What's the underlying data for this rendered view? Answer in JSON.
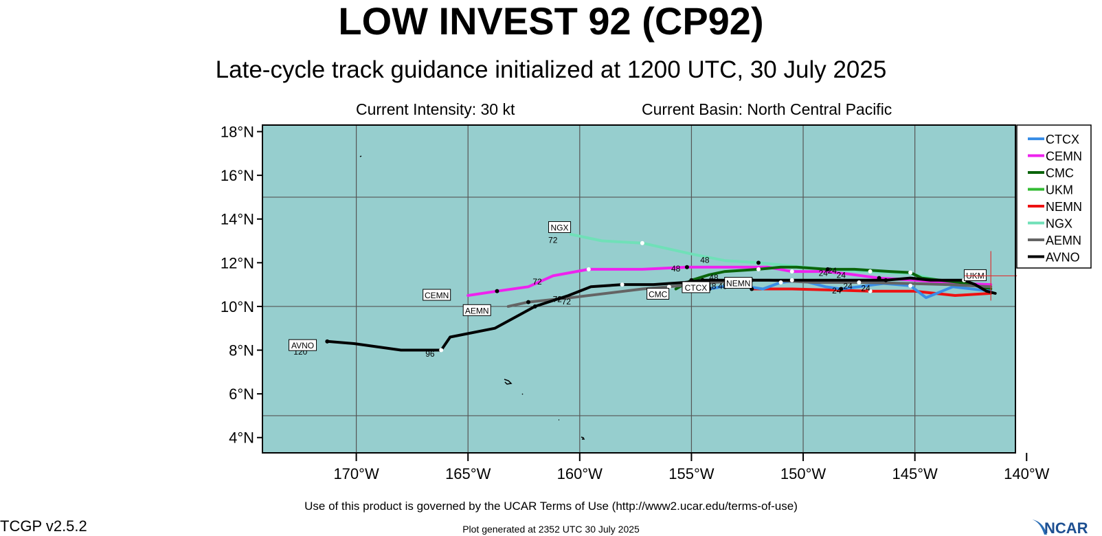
{
  "header": {
    "title": "LOW INVEST 92 (CP92)",
    "subtitle": "Late-cycle track guidance initialized at 1200 UTC, 30 July 2025",
    "intensity": "Current Intensity: 30 kt",
    "basin": "Current Basin: North Central Pacific"
  },
  "footer": {
    "terms": "Use of this product is governed by the UCAR Terms of Use (http://www2.ucar.edu/terms-of-use)",
    "version": "TCGP v2.5.2",
    "generated": "Plot generated at 2352 UTC   30 July 2025",
    "logo_text": "NCAR"
  },
  "colors": {
    "ocean": "#96cece",
    "grid": "#555555",
    "CTCX": "#3a8ee6",
    "CEMN": "#ee22ee",
    "CMC": "#0a640a",
    "UKM": "#33bb33",
    "NEMN": "#ee1111",
    "NGX": "#70e0b8",
    "AEMN": "#646464",
    "AVNO": "#000000",
    "current_position": "#dd3333"
  },
  "chart_data": {
    "type": "map-track",
    "lat_ticks": [
      "4°N",
      "6°N",
      "8°N",
      "10°N",
      "12°N",
      "14°N",
      "16°N",
      "18°N"
    ],
    "lon_ticks": [
      "170°W",
      "165°W",
      "160°W",
      "155°W",
      "150°W",
      "145°W",
      "140°W"
    ],
    "lat_range": [
      3.3,
      18.3
    ],
    "lon_range": [
      -174.2,
      -140.5
    ],
    "current_position": {
      "lon": -141.6,
      "lat": 11.4
    },
    "legend": [
      "CTCX",
      "CEMN",
      "CMC",
      "UKM",
      "NEMN",
      "NGX",
      "AEMN",
      "AVNO"
    ],
    "series": [
      {
        "name": "NGX",
        "tag": "NGX",
        "end_hour": "72",
        "points": [
          [
            -141.6,
            11.0
          ],
          [
            -143.5,
            11.1
          ],
          [
            -145.2,
            11.5
          ],
          [
            -147,
            11.6
          ],
          [
            -149,
            11.7
          ],
          [
            -151,
            11.9
          ],
          [
            -152,
            12.0
          ],
          [
            -153.5,
            12.1
          ],
          [
            -155,
            12.4
          ],
          [
            -157.2,
            12.9
          ],
          [
            -159,
            13.0
          ],
          [
            -160.4,
            13.3
          ]
        ]
      },
      {
        "name": "CEMN",
        "tag": "CEMN",
        "end_hour": "72",
        "points": [
          [
            -141.6,
            11.0
          ],
          [
            -143,
            11.05
          ],
          [
            -145,
            11.2
          ],
          [
            -146.6,
            11.3
          ],
          [
            -148.1,
            11.5
          ],
          [
            -149,
            11.6
          ],
          [
            -150.5,
            11.6
          ],
          [
            -151.6,
            11.8
          ],
          [
            -154,
            11.8
          ],
          [
            -155.2,
            11.8
          ],
          [
            -157.2,
            11.7
          ],
          [
            -158.2,
            11.7
          ],
          [
            -159.6,
            11.7
          ],
          [
            -161.2,
            11.4
          ],
          [
            -162.3,
            10.9
          ],
          [
            -163.7,
            10.7
          ],
          [
            -165,
            10.5
          ]
        ]
      },
      {
        "name": "CMC",
        "tag": "CMC",
        "end_hour": "",
        "points": [
          [
            -141.6,
            10.8
          ],
          [
            -143,
            11.1
          ],
          [
            -144.7,
            11.3
          ],
          [
            -145.2,
            11.55
          ],
          [
            -146.1,
            11.6
          ],
          [
            -147.7,
            11.7
          ],
          [
            -148.9,
            11.7
          ],
          [
            -150.3,
            11.8
          ],
          [
            -151,
            11.8
          ],
          [
            -152,
            11.7
          ],
          [
            -153.5,
            11.6
          ],
          [
            -154.2,
            11.45
          ],
          [
            -155,
            11.2
          ],
          [
            -155.7,
            10.8
          ]
        ]
      },
      {
        "name": "NEMN",
        "tag": "NEMN",
        "end_hour": "",
        "points": [
          [
            -141.6,
            10.6
          ],
          [
            -143.2,
            10.5
          ],
          [
            -145,
            10.7
          ],
          [
            -147,
            10.7
          ],
          [
            -148.6,
            10.75
          ],
          [
            -150.5,
            10.8
          ],
          [
            -152.3,
            10.8
          ]
        ]
      },
      {
        "name": "CTCX",
        "tag": "CTCX",
        "end_hour": "",
        "points": [
          [
            -141.6,
            10.7
          ],
          [
            -143.3,
            10.9
          ],
          [
            -144.5,
            10.4
          ],
          [
            -145.2,
            10.95
          ],
          [
            -146.4,
            11.05
          ],
          [
            -147.5,
            10.9
          ],
          [
            -148.3,
            10.8
          ],
          [
            -149,
            10.9
          ],
          [
            -150.1,
            11.2
          ],
          [
            -151,
            11.1
          ],
          [
            -151.8,
            10.8
          ],
          [
            -153.1,
            11.0
          ],
          [
            -154.2,
            10.8
          ],
          [
            -154.9,
            10.8
          ]
        ]
      },
      {
        "name": "AEMN",
        "tag": "AEMN",
        "end_hour": "72",
        "points": [
          [
            -141.6,
            10.9
          ],
          [
            -143.5,
            11.0
          ],
          [
            -145.3,
            11.05
          ],
          [
            -147.5,
            11.1
          ],
          [
            -149.5,
            11.1
          ],
          [
            -151.5,
            11.2
          ],
          [
            -152.3,
            11.2
          ],
          [
            -154,
            11.1
          ],
          [
            -155,
            11.0
          ],
          [
            -156,
            10.9
          ],
          [
            -157.2,
            10.8
          ],
          [
            -160.4,
            10.4
          ],
          [
            -162.3,
            10.2
          ],
          [
            -163.2,
            10.0
          ]
        ]
      },
      {
        "name": "AVNO",
        "tag": "AVNO",
        "end_hour": "120",
        "points": [
          [
            -141.4,
            10.6
          ],
          [
            -141.8,
            10.7
          ],
          [
            -142.3,
            11.0
          ],
          [
            -142.8,
            11.2
          ],
          [
            -144.3,
            11.2
          ],
          [
            -145.2,
            11.3
          ],
          [
            -146.3,
            11.2
          ],
          [
            -147.9,
            11.2
          ],
          [
            -149,
            11.2
          ],
          [
            -150.5,
            11.2
          ],
          [
            -152,
            11.2
          ],
          [
            -153.5,
            11.2
          ],
          [
            -154.5,
            11.2
          ],
          [
            -155.3,
            11.1
          ],
          [
            -156.7,
            11.0
          ],
          [
            -158.1,
            11.0
          ],
          [
            -159.5,
            10.9
          ],
          [
            -160.5,
            10.5
          ],
          [
            -162,
            10.0
          ],
          [
            -163.8,
            9.0
          ],
          [
            -165.8,
            8.6
          ],
          [
            -166.2,
            8.0
          ],
          [
            -168,
            8.0
          ],
          [
            -170.1,
            8.3
          ],
          [
            -171.3,
            8.4
          ]
        ]
      }
    ],
    "hour_labels": [
      {
        "text": "72",
        "lon": -161.9,
        "lat": 11.0
      },
      {
        "text": "72",
        "lon": -161.2,
        "lat": 12.9
      },
      {
        "text": "72",
        "lon": -161.0,
        "lat": 10.2
      },
      {
        "text": "72",
        "lon": -160.6,
        "lat": 10.1
      },
      {
        "text": "96",
        "lon": -166.7,
        "lat": 7.7
      },
      {
        "text": "120",
        "lon": -172.5,
        "lat": 7.8
      },
      {
        "text": "48",
        "lon": -155.7,
        "lat": 11.6
      },
      {
        "text": "48",
        "lon": -154.4,
        "lat": 12.0
      },
      {
        "text": "48",
        "lon": -154.8,
        "lat": 10.9
      },
      {
        "text": "48",
        "lon": -154.0,
        "lat": 11.2
      },
      {
        "text": "48",
        "lon": -154.1,
        "lat": 10.8
      },
      {
        "text": "48",
        "lon": -153.6,
        "lat": 10.8
      },
      {
        "text": "24",
        "lon": -149.1,
        "lat": 11.4
      },
      {
        "text": "24",
        "lon": -148.7,
        "lat": 11.5
      },
      {
        "text": "24",
        "lon": -148.3,
        "lat": 11.3
      },
      {
        "text": "24",
        "lon": -148.0,
        "lat": 10.8
      },
      {
        "text": "24",
        "lon": -148.5,
        "lat": 10.6
      },
      {
        "text": "24",
        "lon": -147.2,
        "lat": 10.7
      }
    ],
    "tag_positions": {
      "NGX": {
        "lon": -160.9,
        "lat": 13.6
      },
      "CEMN": {
        "lon": -166.4,
        "lat": 10.5
      },
      "AEMN": {
        "lon": -164.6,
        "lat": 9.8
      },
      "AVNO": {
        "lon": -172.4,
        "lat": 8.2
      },
      "CMC": {
        "lon": -156.5,
        "lat": 10.55
      },
      "CTCX": {
        "lon": -154.8,
        "lat": 10.85
      },
      "NEMN": {
        "lon": -152.9,
        "lat": 11.05
      },
      "UKM": {
        "lon": -142.3,
        "lat": 11.4
      }
    }
  }
}
